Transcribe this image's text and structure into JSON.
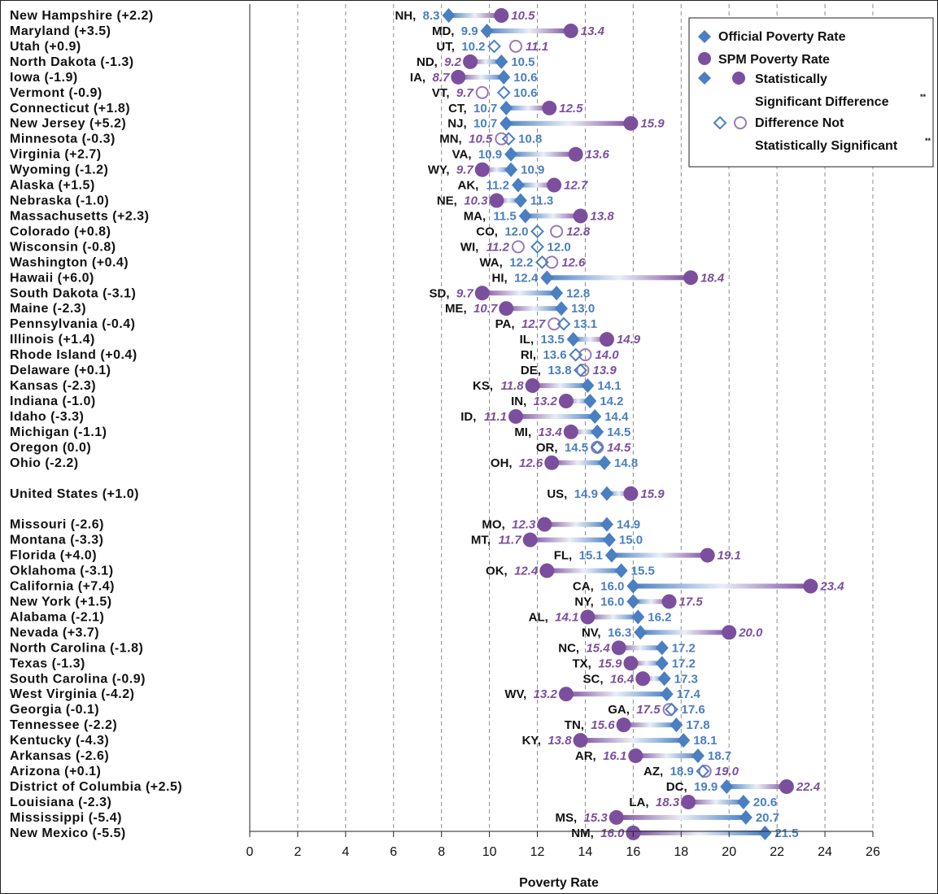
{
  "colors": {
    "official": "#4a7fc1",
    "spm": "#7b4f9e",
    "grid": "#8c8c8c",
    "text": "#111111"
  },
  "legend": {
    "official_label": "Official Poverty Rate",
    "spm_label": "SPM Poverty Rate",
    "significant_line1": "Statistically",
    "significant_line2": "Significant Difference",
    "not_significant_line1": "Difference Not",
    "not_significant_line2": "Statistically Significant",
    "footnote_mark": "**"
  },
  "chart_data": {
    "type": "dumbbell",
    "title": "",
    "xlabel": "Poverty Rate",
    "ylabel": "",
    "xlim": [
      0,
      26
    ],
    "xticks": [
      0,
      2,
      4,
      6,
      8,
      10,
      12,
      14,
      16,
      18,
      20,
      22,
      24,
      26
    ],
    "grid": "vertical-dashed",
    "legend_position": "top-right",
    "series": [
      {
        "name": "Official Poverty Rate",
        "marker": "diamond"
      },
      {
        "name": "SPM Poverty Rate",
        "marker": "circle"
      }
    ],
    "rows": [
      {
        "label": "New Hampshire  (+2.2)",
        "abbr": "NH,",
        "official": 8.3,
        "spm": 10.5,
        "official_text": "8.3",
        "spm_text": "10.5",
        "significant": true
      },
      {
        "label": "Maryland  (+3.5)",
        "abbr": "MD,",
        "official": 9.9,
        "spm": 13.4,
        "official_text": "9.9",
        "spm_text": "13.4",
        "significant": true
      },
      {
        "label": "Utah  (+0.9)",
        "abbr": "UT,",
        "official": 10.2,
        "spm": 11.1,
        "official_text": "10.2",
        "spm_text": "11.1",
        "significant": false
      },
      {
        "label": "North Dakota  (-1.3)",
        "abbr": "ND,",
        "official": 10.5,
        "spm": 9.2,
        "official_text": "10.5",
        "spm_text": "9.2",
        "significant": true
      },
      {
        "label": "Iowa  (-1.9)",
        "abbr": "IA,",
        "official": 10.6,
        "spm": 8.7,
        "official_text": "10.6",
        "spm_text": "8.7",
        "significant": true
      },
      {
        "label": "Vermont  (-0.9)",
        "abbr": "VT,",
        "official": 10.6,
        "spm": 9.7,
        "official_text": "10.6",
        "spm_text": "9.7",
        "significant": false
      },
      {
        "label": "Connecticut  (+1.8)",
        "abbr": "CT,",
        "official": 10.7,
        "spm": 12.5,
        "official_text": "10.7",
        "spm_text": "12.5",
        "significant": true
      },
      {
        "label": "New Jersey  (+5.2)",
        "abbr": "NJ,",
        "official": 10.7,
        "spm": 15.9,
        "official_text": "10.7",
        "spm_text": "15.9",
        "significant": true
      },
      {
        "label": "Minnesota  (-0.3)",
        "abbr": "MN,",
        "official": 10.8,
        "spm": 10.5,
        "official_text": "10.8",
        "spm_text": "10.5",
        "significant": false
      },
      {
        "label": "Virginia  (+2.7)",
        "abbr": "VA,",
        "official": 10.9,
        "spm": 13.6,
        "official_text": "10.9",
        "spm_text": "13.6",
        "significant": true
      },
      {
        "label": "Wyoming  (-1.2)",
        "abbr": "WY,",
        "official": 10.9,
        "spm": 9.7,
        "official_text": "10.9",
        "spm_text": "9.7",
        "significant": true
      },
      {
        "label": "Alaska  (+1.5)",
        "abbr": "AK,",
        "official": 11.2,
        "spm": 12.7,
        "official_text": "11.2",
        "spm_text": "12.7",
        "significant": true
      },
      {
        "label": "Nebraska  (-1.0)",
        "abbr": "NE,",
        "official": 11.3,
        "spm": 10.3,
        "official_text": "11.3",
        "spm_text": "10.3",
        "significant": true
      },
      {
        "label": "Massachusetts  (+2.3)",
        "abbr": "MA,",
        "official": 11.5,
        "spm": 13.8,
        "official_text": "11.5",
        "spm_text": "13.8",
        "significant": true
      },
      {
        "label": "Colorado  (+0.8)",
        "abbr": "CO,",
        "official": 12.0,
        "spm": 12.8,
        "official_text": "12.0",
        "spm_text": "12.8",
        "significant": false
      },
      {
        "label": "Wisconsin  (-0.8)",
        "abbr": "WI,",
        "official": 12.0,
        "spm": 11.2,
        "official_text": "12.0",
        "spm_text": "11.2",
        "significant": false
      },
      {
        "label": "Washington  (+0.4)",
        "abbr": "WA,",
        "official": 12.2,
        "spm": 12.6,
        "official_text": "12.2",
        "spm_text": "12.6",
        "significant": false
      },
      {
        "label": "Hawaii  (+6.0)",
        "abbr": "HI,",
        "official": 12.4,
        "spm": 18.4,
        "official_text": "12.4",
        "spm_text": "18.4",
        "significant": true
      },
      {
        "label": "South Dakota  (-3.1)",
        "abbr": "SD,",
        "official": 12.8,
        "spm": 9.7,
        "official_text": "12.8",
        "spm_text": "9.7",
        "significant": true
      },
      {
        "label": "Maine  (-2.3)",
        "abbr": "ME,",
        "official": 13.0,
        "spm": 10.7,
        "official_text": "13.0",
        "spm_text": "10.7",
        "significant": true
      },
      {
        "label": "Pennsylvania  (-0.4)",
        "abbr": "PA,",
        "official": 13.1,
        "spm": 12.7,
        "official_text": "13.1",
        "spm_text": "12.7",
        "significant": false
      },
      {
        "label": "Illinois  (+1.4)",
        "abbr": "IL,",
        "official": 13.5,
        "spm": 14.9,
        "official_text": "13.5",
        "spm_text": "14.9",
        "significant": true
      },
      {
        "label": "Rhode Island  (+0.4)",
        "abbr": "RI,",
        "official": 13.6,
        "spm": 14.0,
        "official_text": "13.6",
        "spm_text": "14.0",
        "significant": false
      },
      {
        "label": "Delaware  (+0.1)",
        "abbr": "DE,",
        "official": 13.8,
        "spm": 13.9,
        "official_text": "13.8",
        "spm_text": "13.9",
        "significant": false
      },
      {
        "label": "Kansas  (-2.3)",
        "abbr": "KS,",
        "official": 14.1,
        "spm": 11.8,
        "official_text": "14.1",
        "spm_text": "11.8",
        "significant": true
      },
      {
        "label": "Indiana  (-1.0)",
        "abbr": "IN,",
        "official": 14.2,
        "spm": 13.2,
        "official_text": "14.2",
        "spm_text": "13.2",
        "significant": true
      },
      {
        "label": "Idaho  (-3.3)",
        "abbr": "ID,",
        "official": 14.4,
        "spm": 11.1,
        "official_text": "14.4",
        "spm_text": "11.1",
        "significant": true
      },
      {
        "label": "Michigan  (-1.1)",
        "abbr": "MI,",
        "official": 14.5,
        "spm": 13.4,
        "official_text": "14.5",
        "spm_text": "13.4",
        "significant": true
      },
      {
        "label": "Oregon  (0.0)",
        "abbr": "OR,",
        "official": 14.5,
        "spm": 14.5,
        "official_text": "14.5",
        "spm_text": "14.5",
        "significant": false
      },
      {
        "label": "Ohio  (-2.2)",
        "abbr": "OH,",
        "official": 14.8,
        "spm": 12.6,
        "official_text": "14.8",
        "spm_text": "12.6",
        "significant": true
      },
      {
        "spacer": true
      },
      {
        "label": "United States  (+1.0)",
        "abbr": "US,",
        "official": 14.9,
        "spm": 15.9,
        "official_text": "14.9",
        "spm_text": "15.9",
        "significant": true
      },
      {
        "spacer": true
      },
      {
        "label": "Missouri  (-2.6)",
        "abbr": "MO,",
        "official": 14.9,
        "spm": 12.3,
        "official_text": "14.9",
        "spm_text": "12.3",
        "significant": true
      },
      {
        "label": "Montana  (-3.3)",
        "abbr": "MT,",
        "official": 15.0,
        "spm": 11.7,
        "official_text": "15.0",
        "spm_text": "11.7",
        "significant": true
      },
      {
        "label": "Florida  (+4.0)",
        "abbr": "FL,",
        "official": 15.1,
        "spm": 19.1,
        "official_text": "15.1",
        "spm_text": "19.1",
        "significant": true
      },
      {
        "label": "Oklahoma  (-3.1)",
        "abbr": "OK,",
        "official": 15.5,
        "spm": 12.4,
        "official_text": "15.5",
        "spm_text": "12.4",
        "significant": true
      },
      {
        "label": "California  (+7.4)",
        "abbr": "CA,",
        "official": 16.0,
        "spm": 23.4,
        "official_text": "16.0",
        "spm_text": "23.4",
        "significant": true
      },
      {
        "label": "New York  (+1.5)",
        "abbr": "NY,",
        "official": 16.0,
        "spm": 17.5,
        "official_text": "16.0",
        "spm_text": "17.5",
        "significant": true
      },
      {
        "label": "Alabama  (-2.1)",
        "abbr": "AL,",
        "official": 16.2,
        "spm": 14.1,
        "official_text": "16.2",
        "spm_text": "14.1",
        "significant": true
      },
      {
        "label": "Nevada  (+3.7)",
        "abbr": "NV,",
        "official": 16.3,
        "spm": 20.0,
        "official_text": "16.3",
        "spm_text": "20.0",
        "significant": true
      },
      {
        "label": "North Carolina  (-1.8)",
        "abbr": "NC,",
        "official": 17.2,
        "spm": 15.4,
        "official_text": "17.2",
        "spm_text": "15.4",
        "significant": true
      },
      {
        "label": "Texas  (-1.3)",
        "abbr": "TX,",
        "official": 17.2,
        "spm": 15.9,
        "official_text": "17.2",
        "spm_text": "15.9",
        "significant": true
      },
      {
        "label": "South Carolina  (-0.9)",
        "abbr": "SC,",
        "official": 17.3,
        "spm": 16.4,
        "official_text": "17.3",
        "spm_text": "16.4",
        "significant": true
      },
      {
        "label": "West Virginia  (-4.2)",
        "abbr": "WV,",
        "official": 17.4,
        "spm": 13.2,
        "official_text": "17.4",
        "spm_text": "13.2",
        "significant": true
      },
      {
        "label": "Georgia  (-0.1)",
        "abbr": "GA,",
        "official": 17.6,
        "spm": 17.5,
        "official_text": "17.6",
        "spm_text": "17.5",
        "significant": false
      },
      {
        "label": "Tennessee  (-2.2)",
        "abbr": "TN,",
        "official": 17.8,
        "spm": 15.6,
        "official_text": "17.8",
        "spm_text": "15.6",
        "significant": true
      },
      {
        "label": "Kentucky  (-4.3)",
        "abbr": "KY,",
        "official": 18.1,
        "spm": 13.8,
        "official_text": "18.1",
        "spm_text": "13.8",
        "significant": true
      },
      {
        "label": "Arkansas  (-2.6)",
        "abbr": "AR,",
        "official": 18.7,
        "spm": 16.1,
        "official_text": "18.7",
        "spm_text": "16.1",
        "significant": true
      },
      {
        "label": "Arizona  (+0.1)",
        "abbr": "AZ,",
        "official": 18.9,
        "spm": 19.0,
        "official_text": "18.9",
        "spm_text": "19.0",
        "significant": false
      },
      {
        "label": "District of Columbia  (+2.5)",
        "abbr": "DC,",
        "official": 19.9,
        "spm": 22.4,
        "official_text": "19.9",
        "spm_text": "22.4",
        "significant": true
      },
      {
        "label": "Louisiana  (-2.3)",
        "abbr": "LA,",
        "official": 20.6,
        "spm": 18.3,
        "official_text": "20.6",
        "spm_text": "18.3",
        "significant": true
      },
      {
        "label": "Mississippi  (-5.4)",
        "abbr": "MS,",
        "official": 20.7,
        "spm": 15.3,
        "official_text": "20.7",
        "spm_text": "15.3",
        "significant": true
      },
      {
        "label": "New Mexico  (-5.5)",
        "abbr": "NM,",
        "official": 21.5,
        "spm": 16.0,
        "official_text": "21.5",
        "spm_text": "16.0",
        "significant": true
      }
    ]
  }
}
